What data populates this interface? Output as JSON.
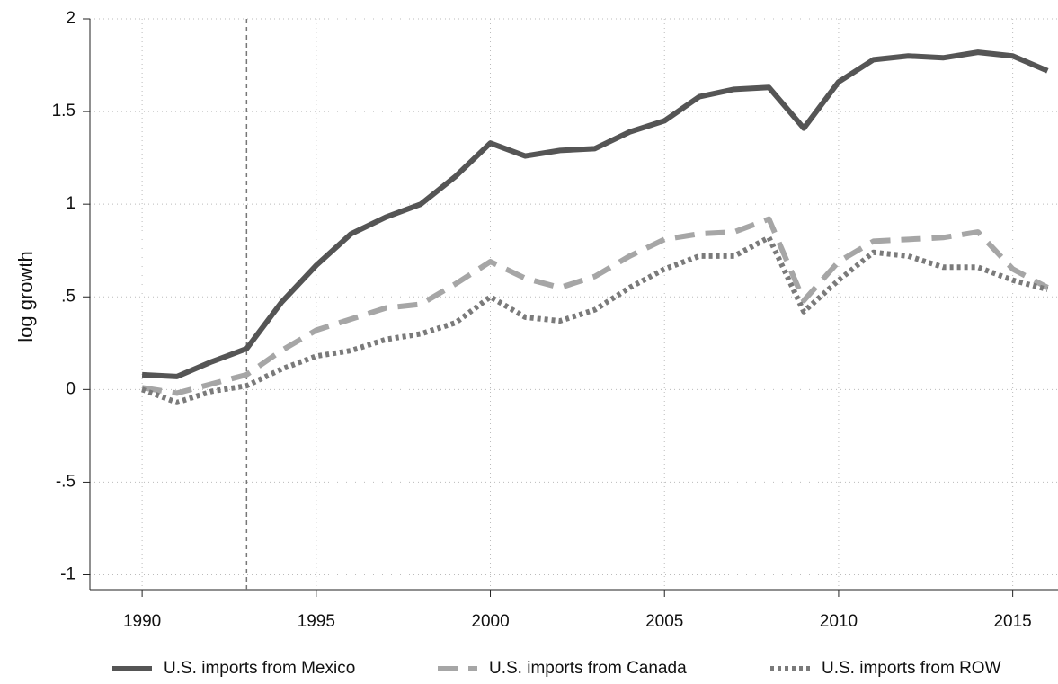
{
  "chart_data": {
    "type": "line",
    "ylabel": "log growth",
    "x": [
      1990,
      1991,
      1992,
      1993,
      1994,
      1995,
      1996,
      1997,
      1998,
      1999,
      2000,
      2001,
      2002,
      2003,
      2004,
      2005,
      2006,
      2007,
      2008,
      2009,
      2010,
      2011,
      2012,
      2013,
      2014,
      2015,
      2016
    ],
    "series": [
      {
        "name": "U.S. imports from Mexico",
        "color": "#555555",
        "style": "solid",
        "values": [
          0.08,
          0.07,
          0.15,
          0.22,
          0.47,
          0.67,
          0.84,
          0.93,
          1.0,
          1.15,
          1.33,
          1.26,
          1.29,
          1.3,
          1.39,
          1.45,
          1.58,
          1.62,
          1.63,
          1.41,
          1.66,
          1.78,
          1.8,
          1.79,
          1.82,
          1.8,
          1.72
        ]
      },
      {
        "name": "U.S. imports from Canada",
        "color": "#a6a6a6",
        "style": "dashed",
        "values": [
          0.01,
          -0.02,
          0.03,
          0.08,
          0.21,
          0.32,
          0.38,
          0.44,
          0.46,
          0.57,
          0.69,
          0.6,
          0.55,
          0.61,
          0.72,
          0.81,
          0.84,
          0.85,
          0.92,
          0.48,
          0.69,
          0.8,
          0.81,
          0.82,
          0.85,
          0.65,
          0.55
        ]
      },
      {
        "name": "U.S. imports from ROW",
        "color": "#7a7a7a",
        "style": "dotted",
        "values": [
          0.0,
          -0.07,
          -0.01,
          0.02,
          0.11,
          0.18,
          0.21,
          0.27,
          0.3,
          0.36,
          0.5,
          0.39,
          0.37,
          0.43,
          0.55,
          0.65,
          0.72,
          0.72,
          0.82,
          0.42,
          0.59,
          0.74,
          0.72,
          0.66,
          0.66,
          0.59,
          0.54
        ]
      }
    ],
    "xlim": [
      1988.5,
      2016.3
    ],
    "xticks": [
      1990,
      1995,
      2000,
      2005,
      2010,
      2015
    ],
    "ylim": [
      -1.08,
      2
    ],
    "yticks": [
      -1,
      {
        "value": -0.5,
        "label": "-.5"
      },
      0,
      {
        "value": 0.5,
        "label": ".5"
      },
      1,
      1.5,
      2
    ],
    "xline": 1993,
    "grid": true,
    "legend": "bottom"
  }
}
